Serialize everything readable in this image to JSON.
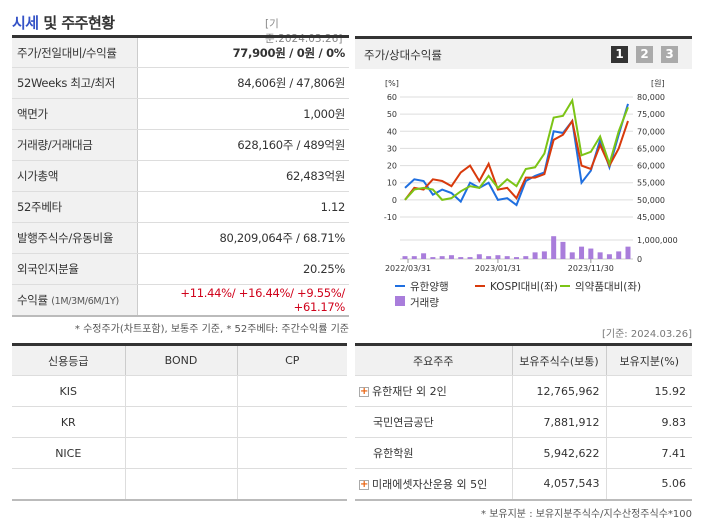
{
  "header": {
    "title_highlight": "시세",
    "title_rest": " 및 주주현황",
    "as_of": "[기준:2024.03.26]"
  },
  "stats": [
    {
      "label": "주가/전일대비/수익률",
      "price": "77,900",
      "rest": "원 / 0원 / 0%"
    },
    {
      "label": "52Weeks 최고/최저",
      "value": "84,606원 / 47,806원"
    },
    {
      "label": "액면가",
      "value": "1,000원"
    },
    {
      "label": "거래량/거래대금",
      "value": "628,160주 / 489억원"
    },
    {
      "label": "시가총액",
      "value": "62,483억원"
    },
    {
      "label": "52주베타",
      "value": "1.12"
    },
    {
      "label": "발행주식수/유동비율",
      "value": "80,209,064주 / 68.71%"
    },
    {
      "label": "외국인지분율",
      "value": "20.25%"
    },
    {
      "label": "수익률",
      "sub": "(1M/3M/6M/1Y)",
      "value": "+11.44%/ +16.44%/ +9.55%/ +61.17%"
    }
  ],
  "note1": "* 수정주가(차트포함), 보통주 기준, * 52주베타: 주간수익률 기준",
  "chart_panel": {
    "title": "주가/상대수익률",
    "pages": [
      "1",
      "2",
      "3"
    ],
    "active_page": "1"
  },
  "chart_data": {
    "type": "line",
    "left_unit": "[%]",
    "right_unit": "[원]",
    "left_ticks": [
      60,
      50,
      40,
      30,
      20,
      10,
      0,
      -10
    ],
    "right_ticks": [
      "80,000",
      "75,000",
      "70,000",
      "65,000",
      "60,000",
      "55,000",
      "50,000",
      "45,000"
    ],
    "volume_ticks": [
      "1,000,000",
      "0"
    ],
    "x_labels": [
      "2022/03/31",
      "2023/01/31",
      "2023/11/30"
    ],
    "ylim": [
      -10,
      60
    ],
    "series": [
      {
        "name": "유한양행",
        "color": "#1f6fe0",
        "values": [
          7,
          12,
          11,
          3,
          6,
          4,
          -1,
          10,
          7,
          10,
          0,
          1,
          -3,
          11,
          14,
          16,
          40,
          39,
          46,
          10,
          17,
          35,
          19,
          38,
          56
        ]
      },
      {
        "name": "KOSPI대비(좌)",
        "color": "#d83a0c",
        "values": [
          0,
          7,
          6,
          12,
          11,
          8,
          16,
          20,
          11,
          21,
          6,
          7,
          1,
          13,
          13,
          15,
          35,
          38,
          46,
          20,
          18,
          32,
          20,
          30,
          46
        ]
      },
      {
        "name": "의약품대비(좌)",
        "color": "#7cc416",
        "values": [
          0,
          6,
          7,
          6,
          0,
          1,
          5,
          8,
          7,
          14,
          7,
          12,
          8,
          18,
          19,
          27,
          48,
          49,
          58,
          26,
          28,
          37,
          21,
          40,
          54
        ]
      }
    ],
    "volume": {
      "name": "거래량",
      "color": "#a97ddb",
      "values": [
        150000,
        150000,
        300000,
        100000,
        150000,
        200000,
        100000,
        100000,
        250000,
        150000,
        200000,
        150000,
        100000,
        150000,
        350000,
        400000,
        1200000,
        900000,
        350000,
        650000,
        550000,
        350000,
        250000,
        400000,
        650000
      ]
    }
  },
  "note2": "[기준: 2024.03.26]",
  "credit": {
    "headers": [
      "신용등급",
      "BOND",
      "CP"
    ],
    "rows": [
      [
        "KIS",
        "",
        ""
      ],
      [
        "KR",
        "",
        ""
      ],
      [
        "NICE",
        "",
        ""
      ],
      [
        "",
        "",
        ""
      ]
    ]
  },
  "holders": {
    "headers": [
      "주요주주",
      "보유주식수(보통)",
      "보유지분(%)"
    ],
    "rows": [
      {
        "name": "유한재단 외 2인",
        "expand": true,
        "shares": "12,765,962",
        "pct": "15.92"
      },
      {
        "name": "국민연금공단",
        "expand": false,
        "shares": "7,881,912",
        "pct": "9.83"
      },
      {
        "name": "유한학원",
        "expand": false,
        "shares": "5,942,622",
        "pct": "7.41"
      },
      {
        "name": "미래에셋자산운용 외 5인",
        "expand": true,
        "shares": "4,057,543",
        "pct": "5.06"
      }
    ]
  },
  "note3": "* 보유지분 : 보유지분주식수/지수산정주식수*100"
}
